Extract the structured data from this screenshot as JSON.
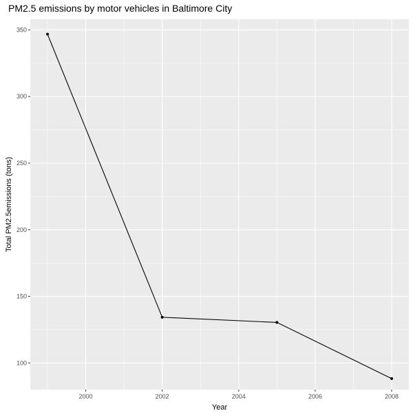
{
  "chart_data": {
    "type": "line",
    "title": "PM2.5 emissions by motor vehicles in Baltimore City",
    "xlabel": "Year",
    "ylabel": "Total PM2.5emissions (tons)",
    "x": [
      1999,
      2002,
      2005,
      2008
    ],
    "series": [
      {
        "values": [
          346.82,
          134.31,
          130.43,
          88.28
        ]
      }
    ],
    "xlim": [
      1998.55,
      2008.45
    ],
    "ylim": [
      80,
      358
    ],
    "xticks": [
      2000,
      2002,
      2004,
      2006,
      2008
    ],
    "yticks": [
      100,
      150,
      200,
      250,
      300,
      350
    ],
    "grid": true,
    "line_color": "#000000",
    "panel_color": "#ebebeb",
    "grid_color": "#ffffff"
  }
}
